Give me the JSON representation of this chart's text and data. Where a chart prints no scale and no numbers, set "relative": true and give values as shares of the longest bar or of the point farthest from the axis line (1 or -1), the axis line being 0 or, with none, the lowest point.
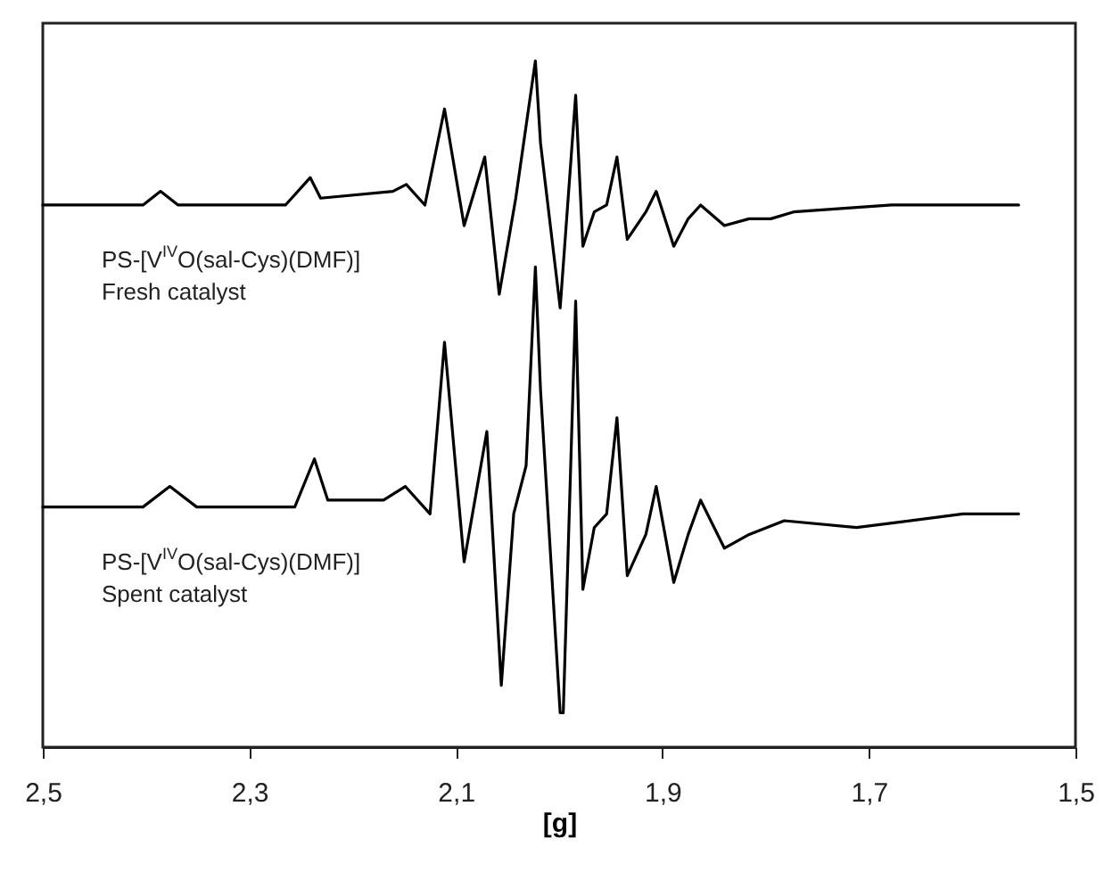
{
  "chart_data": {
    "type": "line",
    "relative": true,
    "xlabel": "[g]",
    "xlim": [
      2.5,
      1.5
    ],
    "xticks": [
      {
        "value": 2.5,
        "label": "2,5"
      },
      {
        "value": 2.3,
        "label": "2,3"
      },
      {
        "value": 2.1,
        "label": "2,1"
      },
      {
        "value": 1.9,
        "label": "1,9"
      },
      {
        "value": 1.7,
        "label": "1,7"
      },
      {
        "value": 1.5,
        "label": "1,5"
      }
    ],
    "series": [
      {
        "color": "#000000",
        "x": [
          2.5,
          2.403,
          2.386,
          2.369,
          2.265,
          2.241,
          2.231,
          2.161,
          2.148,
          2.13,
          2.111,
          2.092,
          2.072,
          2.058,
          2.042,
          2.023,
          2.018,
          1.999,
          1.984,
          1.977,
          1.966,
          1.954,
          1.944,
          1.934,
          1.916,
          1.906,
          1.889,
          1.875,
          1.863,
          1.84,
          1.816,
          1.795,
          1.773,
          1.678,
          1.555
        ],
        "values": [
          0.79,
          0.79,
          0.81,
          0.79,
          0.79,
          0.83,
          0.8,
          0.81,
          0.82,
          0.79,
          0.93,
          0.76,
          0.86,
          0.66,
          0.8,
          1.0,
          0.88,
          0.64,
          0.95,
          0.73,
          0.78,
          0.79,
          0.86,
          0.74,
          0.78,
          0.81,
          0.73,
          0.77,
          0.79,
          0.76,
          0.77,
          0.77,
          0.78,
          0.79,
          0.79
        ]
      },
      {
        "color": "#000000",
        "x": [
          2.5,
          2.403,
          2.377,
          2.351,
          2.256,
          2.237,
          2.224,
          2.17,
          2.149,
          2.125,
          2.111,
          2.092,
          2.07,
          2.056,
          2.044,
          2.032,
          2.023,
          2.018,
          1.999,
          1.996,
          1.984,
          1.977,
          1.966,
          1.954,
          1.944,
          1.934,
          1.916,
          1.906,
          1.889,
          1.875,
          1.863,
          1.84,
          1.816,
          1.782,
          1.712,
          1.609,
          1.555
        ],
        "values": [
          0.35,
          0.35,
          0.38,
          0.35,
          0.35,
          0.42,
          0.36,
          0.36,
          0.38,
          0.34,
          0.59,
          0.27,
          0.46,
          0.09,
          0.34,
          0.41,
          0.7,
          0.52,
          0.05,
          0.05,
          0.65,
          0.23,
          0.32,
          0.34,
          0.48,
          0.25,
          0.31,
          0.38,
          0.24,
          0.31,
          0.36,
          0.29,
          0.31,
          0.33,
          0.32,
          0.34,
          0.34
        ]
      }
    ],
    "annotations": [
      "PS-[V$^{IV}$O(sal-Cys)(DMF)]",
      "Fresh catalyst",
      "PS-[V$^{IV}$O(sal-Cys)(DMF)]",
      "Spent catalyst"
    ]
  }
}
